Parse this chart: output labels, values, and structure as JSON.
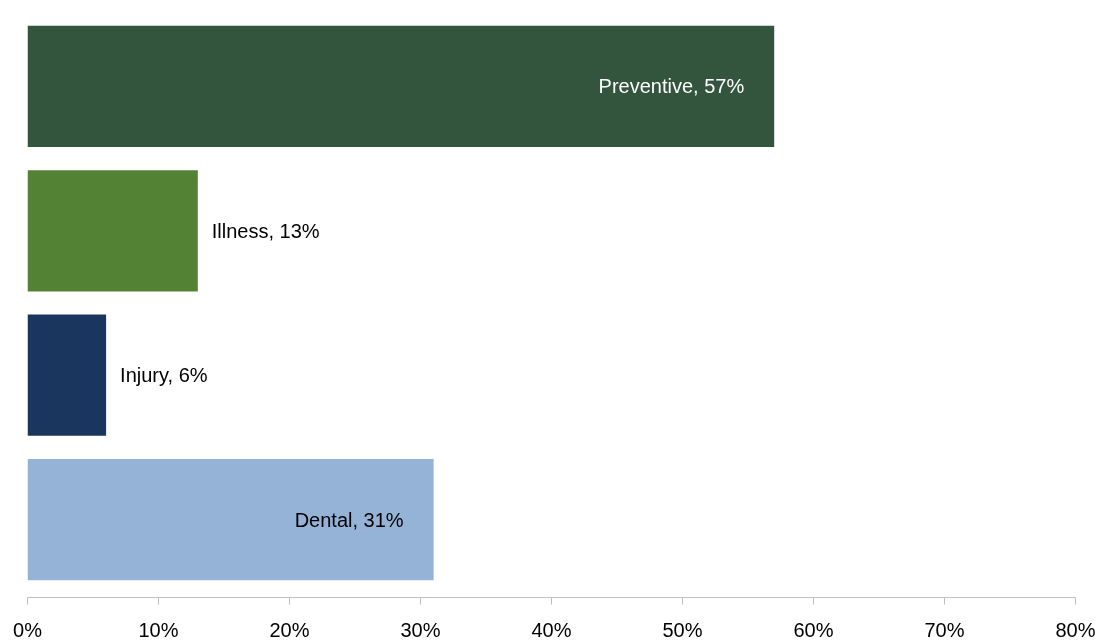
{
  "chart_data": {
    "type": "bar",
    "orientation": "horizontal",
    "categories": [
      null,
      null,
      null,
      null
    ],
    "values": [
      57,
      13,
      6,
      31
    ],
    "colors": [
      "#33553d",
      "#548235",
      "#1a365f",
      "#95b3d7"
    ],
    "value_labels": [
      "Preventive, 57%",
      "Illness, 13%",
      "Injury, 6%",
      "Dental, 31%"
    ],
    "xlim": [
      0,
      80
    ],
    "xticks": [
      {
        "value": 0,
        "label": "0%"
      },
      {
        "value": 10,
        "label": "10%"
      },
      {
        "value": 20,
        "label": "20%"
      },
      {
        "value": 30,
        "label": "30%"
      },
      {
        "value": 40,
        "label": "40%"
      },
      {
        "value": 50,
        "label": "50%"
      },
      {
        "value": 60,
        "label": "60%"
      },
      {
        "value": 70,
        "label": "70%"
      },
      {
        "value": 80,
        "label": "80%"
      }
    ],
    "tick_labels": "x",
    "grid": false
  }
}
